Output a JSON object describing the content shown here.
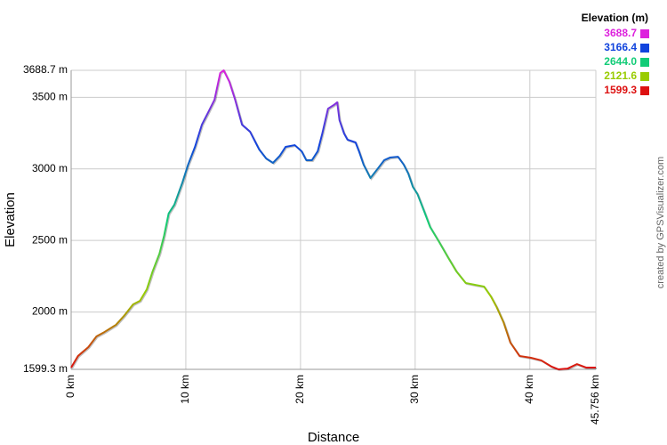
{
  "chart_data": {
    "type": "line",
    "y_label": "Elevation",
    "x_label": "Distance",
    "credit": "created by GPSVisualizer.com",
    "legend_title": "Elevation (m)",
    "legend": [
      {
        "value": 3688.7,
        "label": "3688.7",
        "color": "#dd22dd"
      },
      {
        "value": 3166.4,
        "label": "3166.4",
        "color": "#1144dd"
      },
      {
        "value": 2644.0,
        "label": "2644.0",
        "color": "#11cc77"
      },
      {
        "value": 2121.6,
        "label": "2121.6",
        "color": "#99cc00"
      },
      {
        "value": 1599.3,
        "label": "1599.3",
        "color": "#dd1111"
      }
    ],
    "xlim": [
      0,
      45.756
    ],
    "ylim": [
      1599.3,
      3688.7
    ],
    "xticks": [
      {
        "value": 0,
        "label": "0 km"
      },
      {
        "value": 10,
        "label": "10 km"
      },
      {
        "value": 20,
        "label": "20 km"
      },
      {
        "value": 30,
        "label": "30 km"
      },
      {
        "value": 40,
        "label": "40 km"
      },
      {
        "value": 45.756,
        "label": "45.756 km"
      }
    ],
    "yticks": [
      {
        "value": 1599.3,
        "label": "1599.3 m"
      },
      {
        "value": 2000,
        "label": "2000 m"
      },
      {
        "value": 2500,
        "label": "2500 m"
      },
      {
        "value": 3000,
        "label": "3000 m"
      },
      {
        "value": 3500,
        "label": "3500 m"
      },
      {
        "value": 3688.7,
        "label": "3688.7 m"
      }
    ],
    "grid": true,
    "x": [
      0,
      0.6,
      1.5,
      2.2,
      2.9,
      3.9,
      4.6,
      5.4,
      6.0,
      6.6,
      7.1,
      7.7,
      8.1,
      8.5,
      9.0,
      9.7,
      10.2,
      10.8,
      11.4,
      12.0,
      12.5,
      13.0,
      13.3,
      13.8,
      14.3,
      14.9,
      15.6,
      16.4,
      17.0,
      17.6,
      18.2,
      18.7,
      19.5,
      20.1,
      20.5,
      21.0,
      21.5,
      21.9,
      22.4,
      22.9,
      23.2,
      23.4,
      23.8,
      24.1,
      24.8,
      25.1,
      25.5,
      26.1,
      26.7,
      27.3,
      27.8,
      28.5,
      29.0,
      29.4,
      29.8,
      30.2,
      30.8,
      31.3,
      32.1,
      32.9,
      33.6,
      34.4,
      35.2,
      36.0,
      36.6,
      37.1,
      37.7,
      38.3,
      39.1,
      40.1,
      41.0,
      41.9,
      42.5,
      43.3,
      44.1,
      44.9,
      45.756
    ],
    "values": [
      1612,
      1693,
      1755,
      1829,
      1860,
      1910,
      1972,
      2053,
      2078,
      2159,
      2283,
      2408,
      2532,
      2688,
      2750,
      2905,
      3030,
      3154,
      3309,
      3403,
      3483,
      3670,
      3688.7,
      3608,
      3483,
      3309,
      3260,
      3135,
      3073,
      3042,
      3092,
      3154,
      3166,
      3123,
      3061,
      3061,
      3123,
      3247,
      3421,
      3446,
      3465,
      3340,
      3247,
      3204,
      3185,
      3123,
      3030,
      2936,
      2998,
      3061,
      3079,
      3085,
      3030,
      2967,
      2874,
      2824,
      2700,
      2594,
      2488,
      2377,
      2283,
      2203,
      2190,
      2178,
      2109,
      2035,
      1929,
      1786,
      1693,
      1680,
      1662,
      1618,
      1599.3,
      1605,
      1636,
      1612,
      1612
    ]
  }
}
